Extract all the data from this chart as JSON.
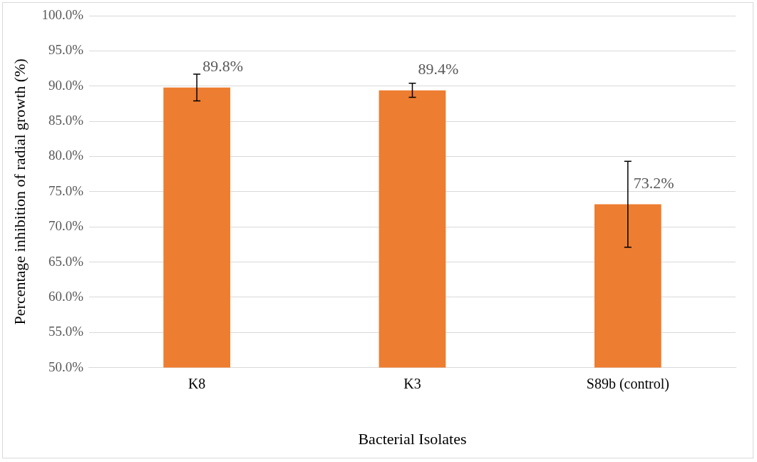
{
  "chart_data": {
    "type": "bar",
    "xlabel": "Bacterial Isolates",
    "ylabel": "Percentage inhibition of radial growth (%)",
    "categories": [
      "K8",
      "K3",
      "S89b (control)"
    ],
    "values": [
      89.8,
      89.4,
      73.2
    ],
    "errors": [
      1.9,
      1.0,
      6.1
    ],
    "value_labels": [
      "89.8%",
      "89.4%",
      "73.2%"
    ],
    "color": "#ed7d31",
    "ylim": [
      50,
      100
    ],
    "yticks": [
      {
        "value": 50,
        "label": "50.0%"
      },
      {
        "value": 55,
        "label": "55.0%"
      },
      {
        "value": 60,
        "label": "60.0%"
      },
      {
        "value": 65,
        "label": "65.0%"
      },
      {
        "value": 70,
        "label": "70.0%"
      },
      {
        "value": 75,
        "label": "75.0%"
      },
      {
        "value": 80,
        "label": "80.0%"
      },
      {
        "value": 85,
        "label": "85.0%"
      },
      {
        "value": 90,
        "label": "90.0%"
      },
      {
        "value": 95,
        "label": "95.0%"
      },
      {
        "value": 100,
        "label": "100.0%"
      }
    ],
    "grid": "y",
    "legend": false
  }
}
